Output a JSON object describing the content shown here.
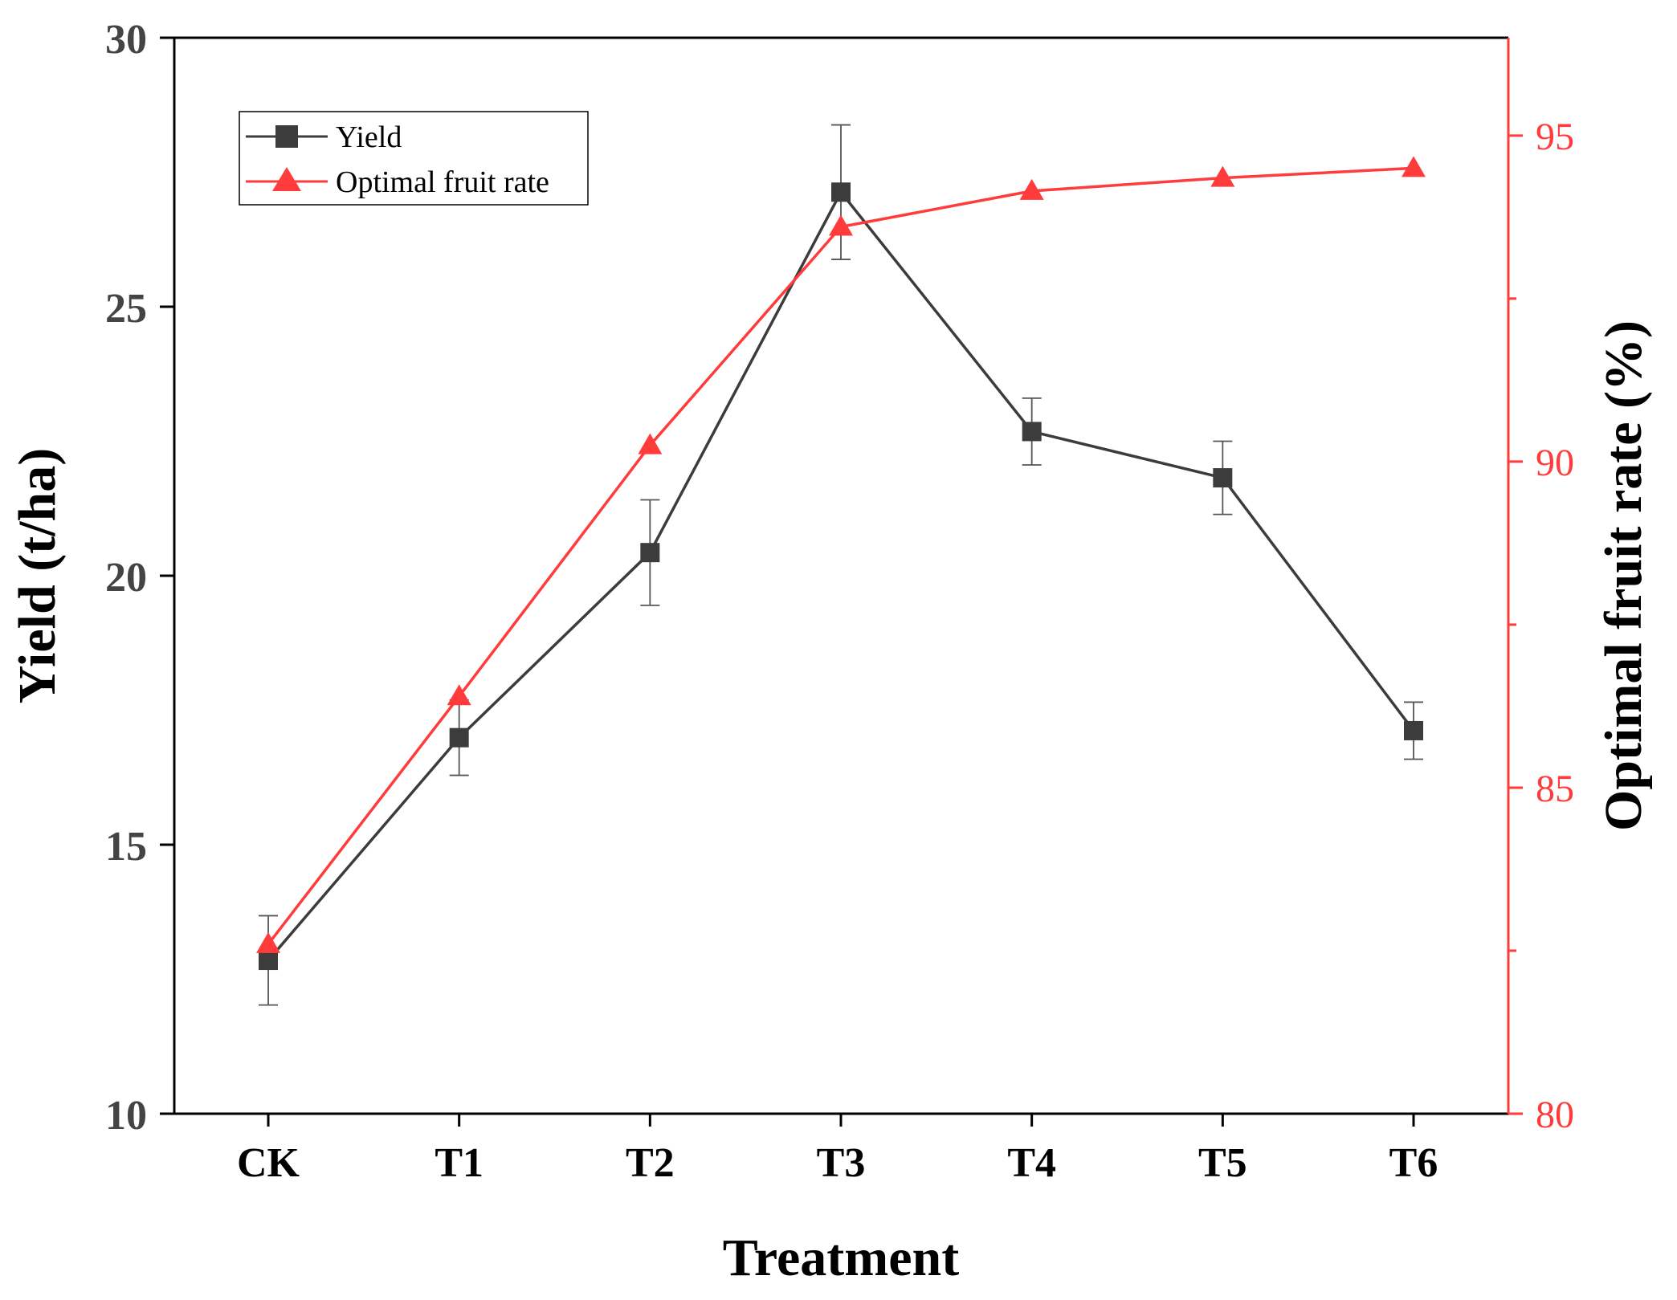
{
  "chart_data": {
    "type": "line",
    "xlabel": "Treatment",
    "categories": [
      "CK",
      "T1",
      "T2",
      "T3",
      "T4",
      "T5",
      "T6"
    ],
    "y_left": {
      "label": "Yield (t/ha)",
      "range": [
        10,
        30
      ],
      "ticks": [
        10,
        15,
        20,
        25,
        30
      ],
      "color": "#000000"
    },
    "y_right": {
      "label": "Optimal fruit rate (%)",
      "range": [
        80,
        96.5
      ],
      "ticks": [
        80,
        85,
        90,
        95
      ],
      "minor_ticks": [
        82.5,
        87.5,
        92.5
      ],
      "color": "#ff3b3b"
    },
    "series": [
      {
        "name": "Yield",
        "axis": "left",
        "color": "#3c3c3c",
        "marker": "square",
        "values": [
          12.85,
          16.99,
          20.43,
          27.13,
          22.68,
          21.82,
          17.12
        ],
        "errors": [
          0.83,
          0.7,
          0.98,
          1.25,
          0.62,
          0.68,
          0.53
        ]
      },
      {
        "name": "Optimal fruit rate",
        "axis": "right",
        "color": "#ff3b3b",
        "marker": "triangle",
        "values": [
          82.6,
          86.4,
          90.25,
          93.6,
          94.15,
          94.35,
          94.5
        ]
      }
    ],
    "legend_position": "top-left"
  }
}
